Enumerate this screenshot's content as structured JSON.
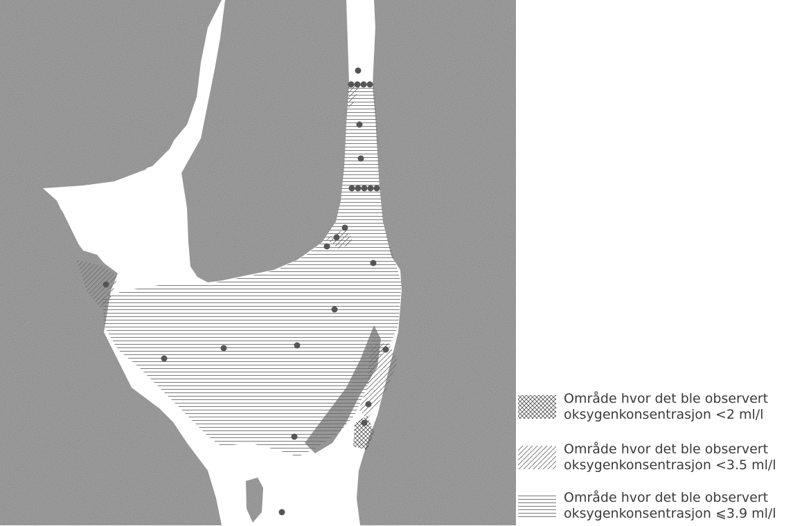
{
  "legend": [
    {
      "pattern": "crosshatch",
      "line1": "Område hvor det ble observert",
      "line2": "oksygenkonsentrasjon <2 ml/l"
    },
    {
      "pattern": "diagonal",
      "line1": "Område hvor det ble observert",
      "line2": "oksygenkonsentrasjon <3.5 ml/l"
    },
    {
      "pattern": "horizontal",
      "line1": "Område hvor det ble observert",
      "line2": "oksygenkonsentrasjon ⩽3.9 ml/l"
    }
  ],
  "colors": {
    "land": "#8f8f8f",
    "water": "#ffffff",
    "station": "#555555",
    "hatch": "#6a6a6a"
  },
  "stations_count": 26
}
